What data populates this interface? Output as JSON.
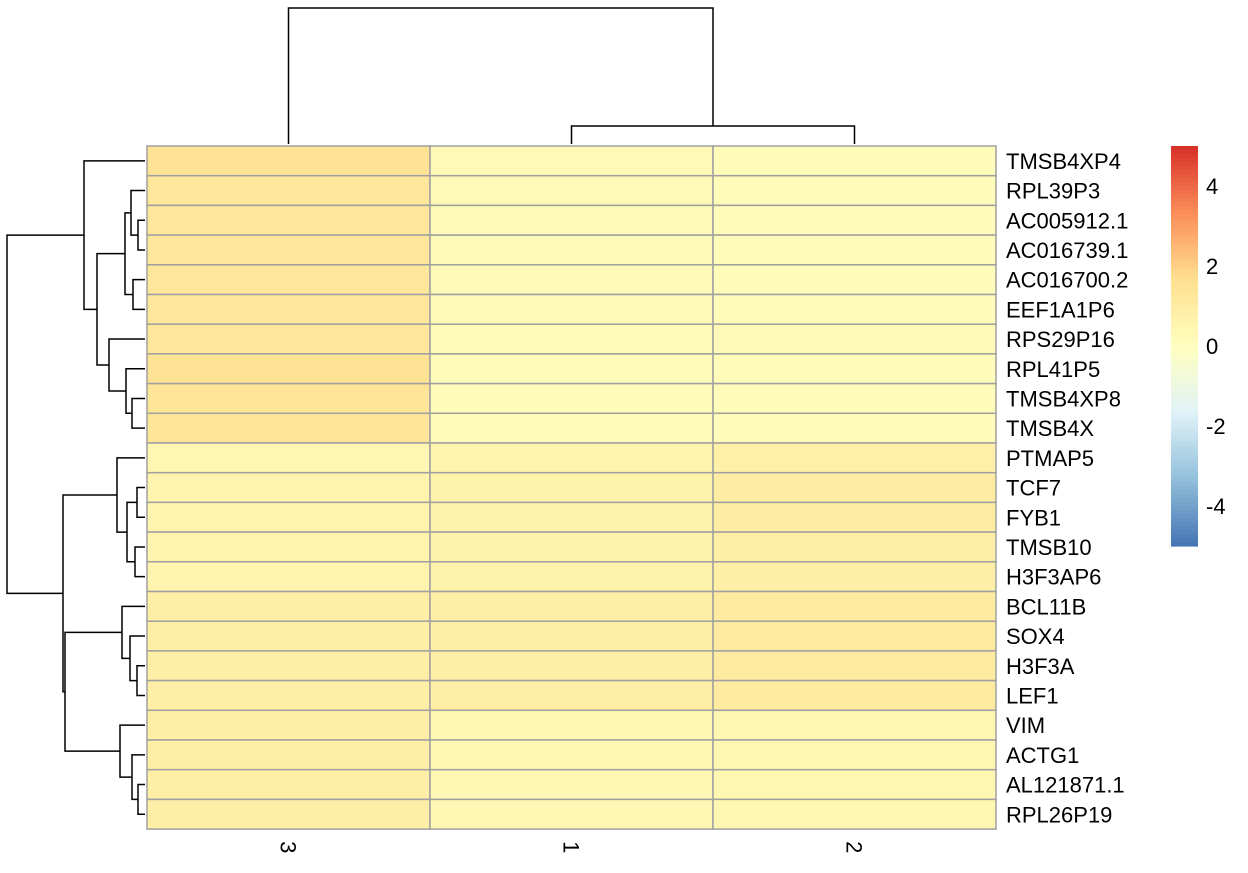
{
  "chart_data": {
    "type": "heatmap",
    "title": "",
    "xlabel": "",
    "ylabel": "",
    "columns": [
      "3",
      "1",
      "2"
    ],
    "rows": [
      "TMSB4XP4",
      "RPL39P3",
      "AC005912.1",
      "AC016739.1",
      "AC016700.2",
      "EEF1A1P6",
      "RPS29P16",
      "RPL41P5",
      "TMSB4XP8",
      "TMSB4X",
      "PTMAP5",
      "TCF7",
      "FYB1",
      "TMSB10",
      "H3F3AP6",
      "BCL11B",
      "SOX4",
      "H3F3A",
      "LEF1",
      "VIM",
      "ACTG1",
      "AL121871.1",
      "RPL26P19"
    ],
    "values": [
      [
        1.5,
        0.3,
        0.2
      ],
      [
        1.3,
        0.3,
        0.2
      ],
      [
        1.3,
        0.3,
        0.2
      ],
      [
        1.3,
        0.3,
        0.2
      ],
      [
        1.3,
        0.3,
        0.2
      ],
      [
        1.3,
        0.3,
        0.2
      ],
      [
        1.3,
        0.2,
        0.3
      ],
      [
        1.5,
        0.2,
        0.2
      ],
      [
        1.4,
        0.2,
        0.2
      ],
      [
        1.4,
        0.2,
        0.2
      ],
      [
        0.5,
        0.6,
        0.8
      ],
      [
        0.6,
        0.7,
        1.0
      ],
      [
        0.6,
        0.7,
        1.0
      ],
      [
        0.6,
        0.7,
        0.9
      ],
      [
        0.6,
        0.7,
        0.9
      ],
      [
        0.9,
        0.9,
        1.1
      ],
      [
        0.9,
        0.9,
        1.1
      ],
      [
        0.9,
        0.9,
        1.1
      ],
      [
        0.9,
        0.9,
        1.1
      ],
      [
        0.9,
        0.4,
        0.5
      ],
      [
        0.9,
        0.4,
        0.5
      ],
      [
        0.9,
        0.4,
        0.5
      ],
      [
        0.9,
        0.4,
        0.5
      ]
    ],
    "legend": {
      "ticks": [
        "4",
        "2",
        "0",
        "-2",
        "-4"
      ],
      "tick_values": [
        4,
        2,
        0,
        -2,
        -4
      ],
      "range": [
        -5,
        5
      ],
      "colors": [
        "#4575B4",
        "#91BFDB",
        "#E0F3F8",
        "#FFFFBF",
        "#FEE090",
        "#FC8D59",
        "#D73027"
      ]
    },
    "border_color": "#A0A0A0"
  }
}
